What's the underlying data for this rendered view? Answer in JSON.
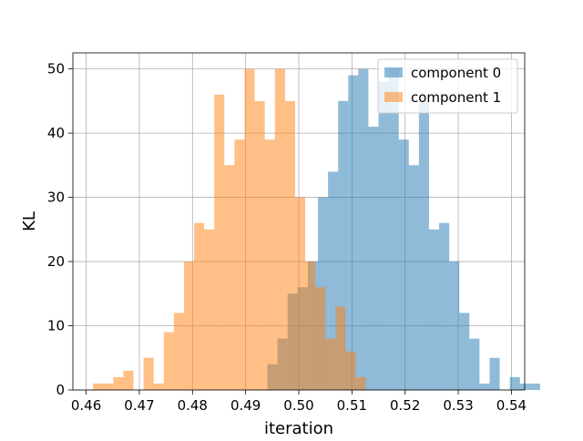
{
  "chart_data": {
    "type": "bar",
    "subtype": "histogram",
    "xlabel": "iteration",
    "ylabel": "KL",
    "xlim": [
      0.4575,
      0.5425
    ],
    "ylim": [
      0,
      52.5
    ],
    "xticks": [
      "0.46",
      "0.47",
      "0.48",
      "0.49",
      "0.50",
      "0.51",
      "0.52",
      "0.53",
      "0.54"
    ],
    "yticks": [
      "0",
      "10",
      "20",
      "30",
      "40",
      "50"
    ],
    "grid": true,
    "legend": {
      "placement": "top-right"
    },
    "series": [
      {
        "name": "component 0",
        "color": "#1f77b4",
        "alpha": 0.5,
        "bin_start": 0.4941,
        "bin_width": 0.0019,
        "counts": [
          4,
          8,
          15,
          16,
          20,
          30,
          34,
          45,
          49,
          50,
          41,
          48,
          50,
          39,
          35,
          45,
          25,
          26,
          20,
          12,
          8,
          1,
          5,
          0,
          2,
          1,
          1
        ]
      },
      {
        "name": "component 1",
        "color": "#ff7f0e",
        "alpha": 0.5,
        "bin_start": 0.4613,
        "bin_width": 0.0019,
        "counts": [
          1,
          1,
          2,
          3,
          0,
          5,
          1,
          9,
          12,
          20,
          26,
          25,
          46,
          35,
          39,
          50,
          45,
          39,
          50,
          45,
          30,
          20,
          16,
          8,
          13,
          6,
          2
        ]
      }
    ]
  }
}
